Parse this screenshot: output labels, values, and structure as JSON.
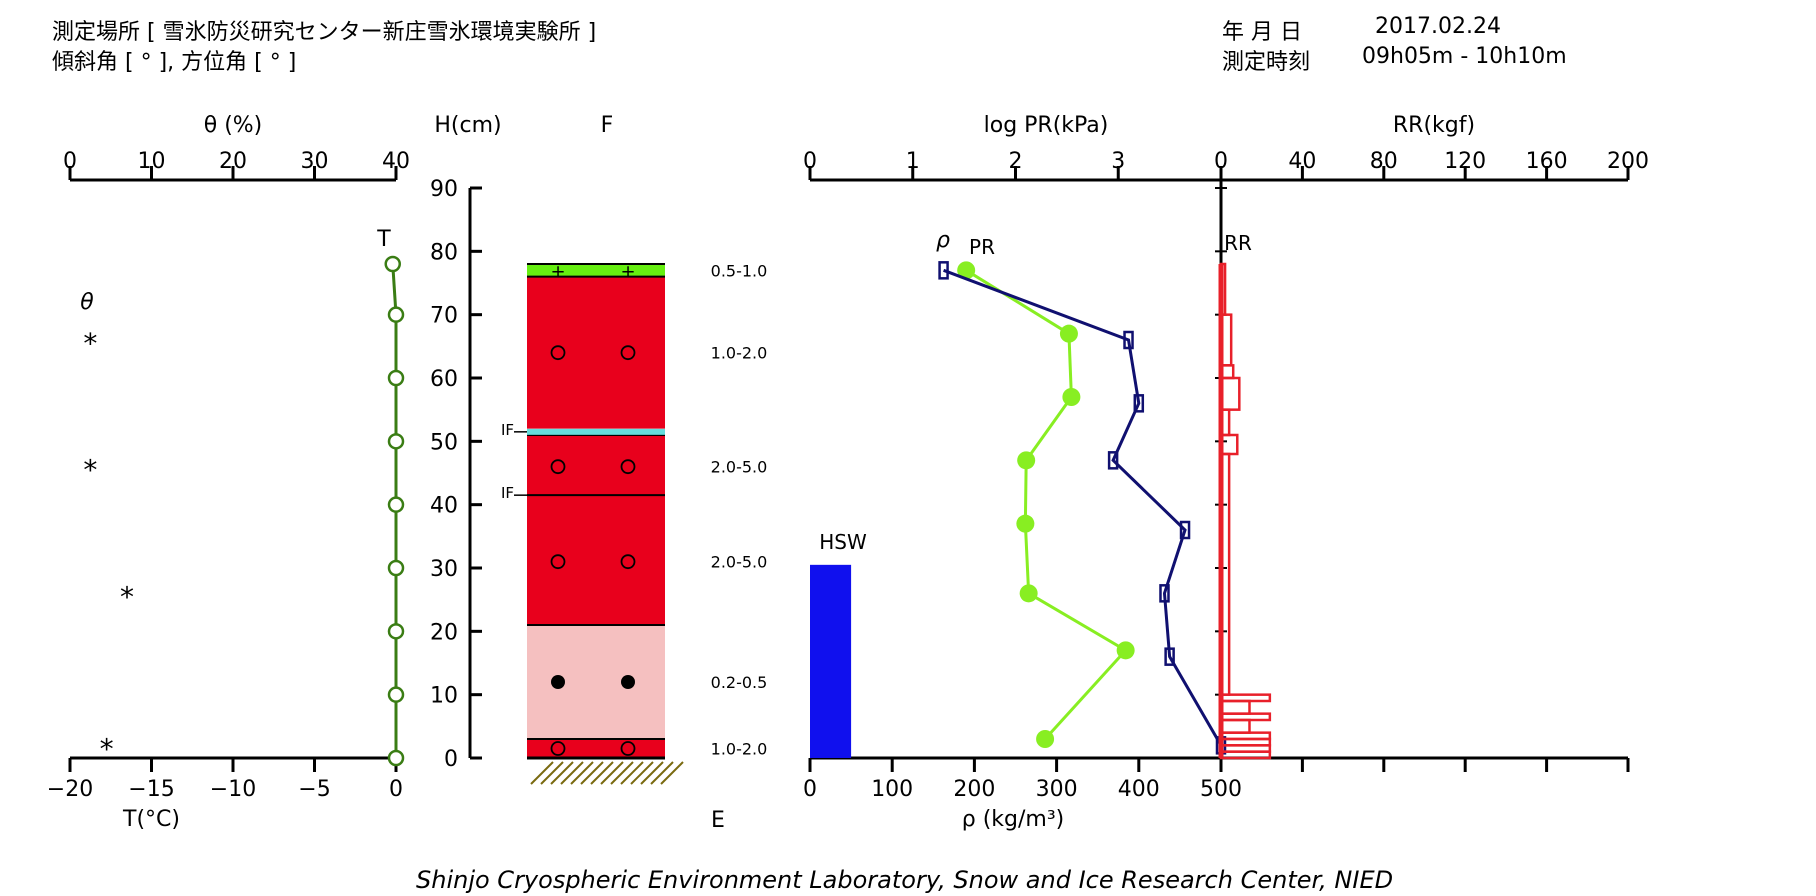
{
  "header": {
    "site_label": "測定場所 [ 雪氷防災研究センター新庄雪氷環境実験所 ]",
    "angle_label": "傾斜角 [ ° ], 方位角 [ ° ]",
    "date_label": "年 月 日",
    "date_value": "2017.02.24",
    "time_label": "測定時刻",
    "time_value": "09h05m - 10h10m"
  },
  "footer": "Shinjo Cryospheric Environment Laboratory, Snow and Ice Research Center, NIED",
  "chart_data": {
    "type": "snow-pit profile",
    "height_axis": {
      "label": "H(cm)",
      "range": [
        0,
        90
      ],
      "ticks": [
        0,
        10,
        20,
        30,
        40,
        50,
        60,
        70,
        80,
        90
      ]
    },
    "theta_axis": {
      "label": "θ (%)",
      "range": [
        0,
        40
      ],
      "ticks": [
        0,
        10,
        20,
        30,
        40
      ]
    },
    "temp_axis": {
      "label": "T(°C)",
      "range": [
        -20,
        0
      ],
      "ticks": [
        -20,
        -15,
        -10,
        -5,
        0
      ]
    },
    "density_axis": {
      "label": "ρ (kg/m³)",
      "range": [
        0,
        500
      ],
      "ticks": [
        0,
        100,
        200,
        300,
        400,
        500
      ]
    },
    "logpr_axis": {
      "label": "log PR(kPa)",
      "range": [
        0,
        4
      ],
      "ticks": [
        0,
        1,
        2,
        3
      ]
    },
    "rr_axis": {
      "label": "RR(kgf)",
      "range": [
        0,
        200
      ],
      "ticks": [
        0,
        40,
        80,
        120,
        160,
        200
      ]
    },
    "labels": {
      "theta": "θ",
      "T": "T",
      "F": "F",
      "E": "E",
      "rho": "ρ",
      "PR": "PR",
      "RR": "RR",
      "HSW": "HSW",
      "IF": "IF"
    },
    "colors": {
      "temp": "#3a7d14",
      "density": "#88ee22",
      "pr": "#101070",
      "rr": "#e8202a",
      "hsw": "#1010ee",
      "layer_red": "#e8001c",
      "layer_pink": "#f5c0c0",
      "layer_green": "#66ee11",
      "ice_crust": "#66dddd"
    },
    "theta_points": [
      {
        "h": 66,
        "theta": 2.5
      },
      {
        "h": 46,
        "theta": 2.5
      },
      {
        "h": 26,
        "theta": 7
      },
      {
        "h": 2,
        "theta": 4.5
      }
    ],
    "temperature": [
      {
        "h": 78,
        "t": -0.2
      },
      {
        "h": 70,
        "t": 0
      },
      {
        "h": 60,
        "t": 0
      },
      {
        "h": 50,
        "t": 0
      },
      {
        "h": 40,
        "t": 0
      },
      {
        "h": 30,
        "t": 0
      },
      {
        "h": 20,
        "t": 0
      },
      {
        "h": 10,
        "t": 0
      },
      {
        "h": 0,
        "t": 0
      }
    ],
    "layers": [
      {
        "bottom": 76,
        "top": 78,
        "color": "layer_green",
        "symbol": "+"
      },
      {
        "bottom": 52,
        "top": 76,
        "color": "layer_red",
        "symbol": "o"
      },
      {
        "bottom": 41.5,
        "top": 51,
        "color": "layer_red",
        "symbol": "o"
      },
      {
        "bottom": 21,
        "top": 41.5,
        "color": "layer_red",
        "symbol": "o"
      },
      {
        "bottom": 3,
        "top": 21,
        "color": "layer_pink",
        "symbol": "●"
      },
      {
        "bottom": 0,
        "top": 3,
        "color": "layer_red",
        "symbol": "o"
      }
    ],
    "ice_crusts": [
      51.5
    ],
    "ice_crust_marks": [
      51.5,
      41.5
    ],
    "layer_symbol_heights": [
      77,
      64,
      46,
      31,
      12,
      1.5
    ],
    "grain_sizes": [
      {
        "h": 77,
        "text": "0.5-1.0"
      },
      {
        "h": 64,
        "text": "1.0-2.0"
      },
      {
        "h": 46,
        "text": "2.0-5.0"
      },
      {
        "h": 31,
        "text": "2.0-5.0"
      },
      {
        "h": 12,
        "text": "0.2-0.5"
      },
      {
        "h": 1.5,
        "text": "1.0-2.0"
      }
    ],
    "density": [
      {
        "h": 77,
        "rho": 190
      },
      {
        "h": 67,
        "rho": 315
      },
      {
        "h": 57,
        "rho": 318
      },
      {
        "h": 47,
        "rho": 263
      },
      {
        "h": 37,
        "rho": 262
      },
      {
        "h": 26,
        "rho": 266
      },
      {
        "h": 17,
        "rho": 384
      },
      {
        "h": 3,
        "rho": 286
      }
    ],
    "log_pr": [
      {
        "h": 77,
        "v": 1.3
      },
      {
        "h": 66,
        "v": 3.1
      },
      {
        "h": 56,
        "v": 3.2
      },
      {
        "h": 47,
        "v": 2.95
      },
      {
        "h": 36,
        "v": 3.65
      },
      {
        "h": 26,
        "v": 3.45
      },
      {
        "h": 16,
        "v": 3.5
      },
      {
        "h": 2,
        "v": 4.0
      }
    ],
    "rr": [
      {
        "bottom": 70,
        "top": 78,
        "v": 2
      },
      {
        "bottom": 62,
        "top": 70,
        "v": 5
      },
      {
        "bottom": 60,
        "top": 62,
        "v": 6
      },
      {
        "bottom": 55,
        "top": 60,
        "v": 9
      },
      {
        "bottom": 51,
        "top": 55,
        "v": 4
      },
      {
        "bottom": 48,
        "top": 51,
        "v": 8
      },
      {
        "bottom": 10,
        "top": 48,
        "v": 4
      },
      {
        "bottom": 9,
        "top": 10,
        "v": 24
      },
      {
        "bottom": 7,
        "top": 9,
        "v": 14
      },
      {
        "bottom": 6,
        "top": 7,
        "v": 24
      },
      {
        "bottom": 4,
        "top": 6,
        "v": 14
      },
      {
        "bottom": 3,
        "top": 4,
        "v": 24
      },
      {
        "bottom": 2,
        "top": 3,
        "v": 24
      },
      {
        "bottom": 1,
        "top": 2,
        "v": 24
      },
      {
        "bottom": 0,
        "top": 1,
        "v": 24
      }
    ],
    "hsw": {
      "height": 30.5,
      "width_rho": 50
    }
  }
}
